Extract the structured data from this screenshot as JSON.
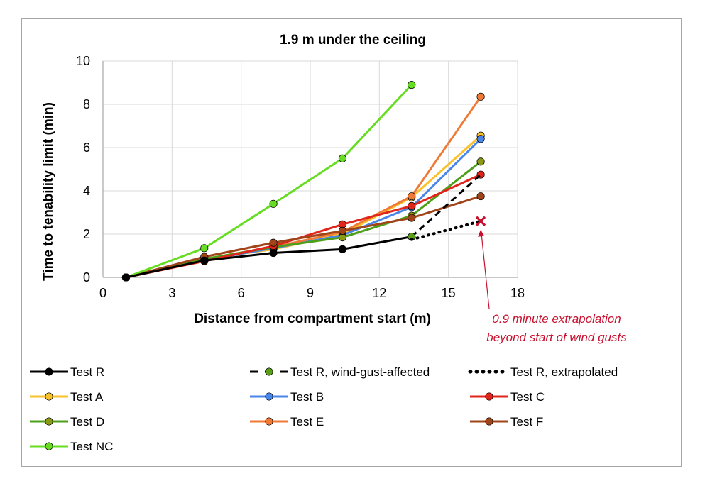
{
  "chart_data": {
    "type": "line",
    "title": "1.9 m under the ceiling",
    "xlabel": "Distance from compartment start (m)",
    "ylabel": "Time to tenability limit (min)",
    "xlim": [
      0,
      18
    ],
    "ylim": [
      0,
      10
    ],
    "xticks": [
      0,
      3,
      6,
      9,
      12,
      15,
      18
    ],
    "yticks": [
      0,
      2,
      4,
      6,
      8,
      10
    ],
    "grid": true,
    "legend_position": "bottom",
    "series": [
      {
        "name": "Test R",
        "color": "#000000",
        "style": "solid",
        "x": [
          1.0,
          4.4,
          7.4,
          10.4,
          13.4
        ],
        "y": [
          0.0,
          0.78,
          1.13,
          1.3,
          1.88
        ]
      },
      {
        "name": "Test R, wind-gust-affected",
        "color": "#000000",
        "marker_color": "#5a9e1a",
        "style": "dashed",
        "x": [
          13.4,
          16.4
        ],
        "y": [
          1.88,
          4.75
        ]
      },
      {
        "name": "Test R, extrapolated",
        "color": "#000000",
        "style": "dotted",
        "x": [
          13.4,
          16.4
        ],
        "y": [
          1.75,
          2.6
        ]
      },
      {
        "name": "Test A",
        "color": "#f9c12c",
        "style": "solid",
        "x": [
          1.0,
          4.4,
          7.4,
          10.4,
          13.4,
          16.4
        ],
        "y": [
          0.0,
          0.85,
          1.3,
          2.0,
          3.7,
          6.55
        ]
      },
      {
        "name": "Test B",
        "color": "#4a86e8",
        "style": "solid",
        "x": [
          1.0,
          4.4,
          7.4,
          10.4,
          13.4,
          16.4
        ],
        "y": [
          0.0,
          0.8,
          1.35,
          1.95,
          3.25,
          6.4
        ]
      },
      {
        "name": "Test C",
        "color": "#e0261c",
        "style": "solid",
        "x": [
          1.0,
          4.4,
          7.4,
          10.4,
          13.4,
          16.4
        ],
        "y": [
          0.0,
          0.75,
          1.45,
          2.45,
          3.3,
          4.75
        ]
      },
      {
        "name": "Test D",
        "color": "#4d9e18",
        "marker_color": "#8a9a12",
        "style": "solid",
        "x": [
          1.0,
          4.4,
          7.4,
          10.4,
          13.4,
          16.4
        ],
        "y": [
          0.0,
          0.85,
          1.4,
          1.85,
          2.85,
          5.35
        ]
      },
      {
        "name": "Test E",
        "color": "#f07a35",
        "style": "solid",
        "x": [
          1.0,
          4.4,
          7.4,
          10.4,
          13.4,
          16.4
        ],
        "y": [
          0.0,
          0.85,
          1.4,
          2.1,
          3.75,
          8.35
        ]
      },
      {
        "name": "Test F",
        "color": "#a0441a",
        "style": "solid",
        "x": [
          1.0,
          4.4,
          7.4,
          10.4,
          13.4,
          16.4
        ],
        "y": [
          0.0,
          0.95,
          1.6,
          2.15,
          2.75,
          3.75
        ]
      },
      {
        "name": "Test NC",
        "color": "#66dd22",
        "style": "solid",
        "x": [
          1.0,
          4.4,
          7.4,
          10.4,
          13.4
        ],
        "y": [
          0.0,
          1.35,
          3.4,
          5.5,
          8.9
        ]
      }
    ],
    "annotation": {
      "text_lines": [
        "0.9 minute extrapolation",
        "beyond start of wind gusts"
      ],
      "color": "#c8102e",
      "target": {
        "x": 16.4,
        "y": 2.6
      }
    }
  }
}
